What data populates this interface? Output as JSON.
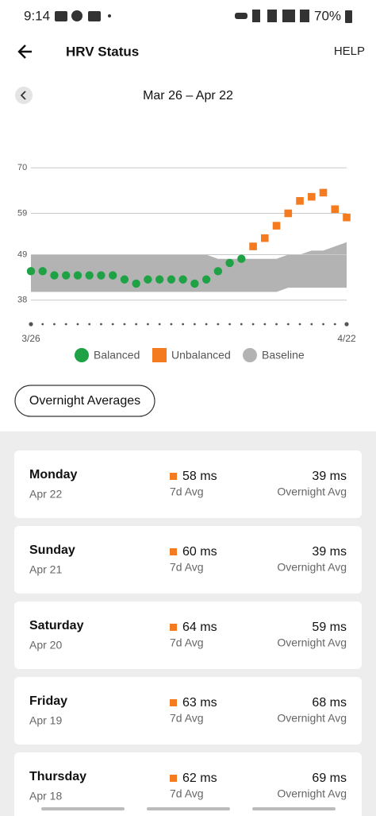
{
  "status_bar": {
    "time": "9:14",
    "battery": "70%"
  },
  "header": {
    "title": "HRV Status",
    "help": "HELP"
  },
  "range": "Mar 26 – Apr 22",
  "chart_data": {
    "type": "scatter",
    "categories": [
      "3/26",
      null,
      null,
      null,
      null,
      null,
      null,
      null,
      null,
      null,
      null,
      null,
      null,
      null,
      null,
      null,
      null,
      null,
      null,
      null,
      null,
      null,
      null,
      null,
      null,
      null,
      null,
      "4/22"
    ],
    "series": [
      {
        "name": "Balanced",
        "color": "#1fa245",
        "values": [
          45,
          45,
          44,
          44,
          44,
          44,
          44,
          44,
          43,
          42,
          43,
          43,
          43,
          43,
          42,
          43,
          45,
          47,
          48,
          null,
          null,
          null,
          null,
          null,
          null,
          null,
          null,
          null
        ]
      },
      {
        "name": "Unbalanced",
        "color": "#f47b20",
        "values": [
          null,
          null,
          null,
          null,
          null,
          null,
          null,
          null,
          null,
          null,
          null,
          null,
          null,
          null,
          null,
          null,
          null,
          null,
          null,
          51,
          53,
          56,
          59,
          62,
          63,
          64,
          60,
          58
        ]
      },
      {
        "name": "Baseline",
        "color": "#b3b3b3",
        "upper": [
          49,
          49,
          49,
          49,
          49,
          49,
          49,
          49,
          49,
          49,
          49,
          49,
          49,
          49,
          49,
          49,
          48,
          48,
          48,
          48,
          48,
          48,
          49,
          49,
          50,
          50,
          51,
          52
        ],
        "lower": [
          40,
          40,
          40,
          40,
          40,
          40,
          40,
          40,
          40,
          40,
          40,
          40,
          40,
          40,
          40,
          40,
          40,
          40,
          40,
          40,
          40,
          40,
          41,
          41,
          41,
          41,
          41,
          41
        ]
      }
    ],
    "ylim": [
      32,
      76
    ],
    "yticks": [
      38,
      49,
      59,
      70
    ],
    "grid": true
  },
  "button": "Overnight Averages",
  "days": [
    {
      "day": "Monday",
      "date": "Apr 22",
      "avg": "58 ms",
      "avg_label": "7d Avg",
      "overnight": "39 ms",
      "overnight_label": "Overnight Avg"
    },
    {
      "day": "Sunday",
      "date": "Apr 21",
      "avg": "60 ms",
      "avg_label": "7d Avg",
      "overnight": "39 ms",
      "overnight_label": "Overnight Avg"
    },
    {
      "day": "Saturday",
      "date": "Apr 20",
      "avg": "64 ms",
      "avg_label": "7d Avg",
      "overnight": "59 ms",
      "overnight_label": "Overnight Avg"
    },
    {
      "day": "Friday",
      "date": "Apr 19",
      "avg": "63 ms",
      "avg_label": "7d Avg",
      "overnight": "68 ms",
      "overnight_label": "Overnight Avg"
    },
    {
      "day": "Thursday",
      "date": "Apr 18",
      "avg": "62 ms",
      "avg_label": "7d Avg",
      "overnight": "69 ms",
      "overnight_label": "Overnight Avg"
    }
  ]
}
